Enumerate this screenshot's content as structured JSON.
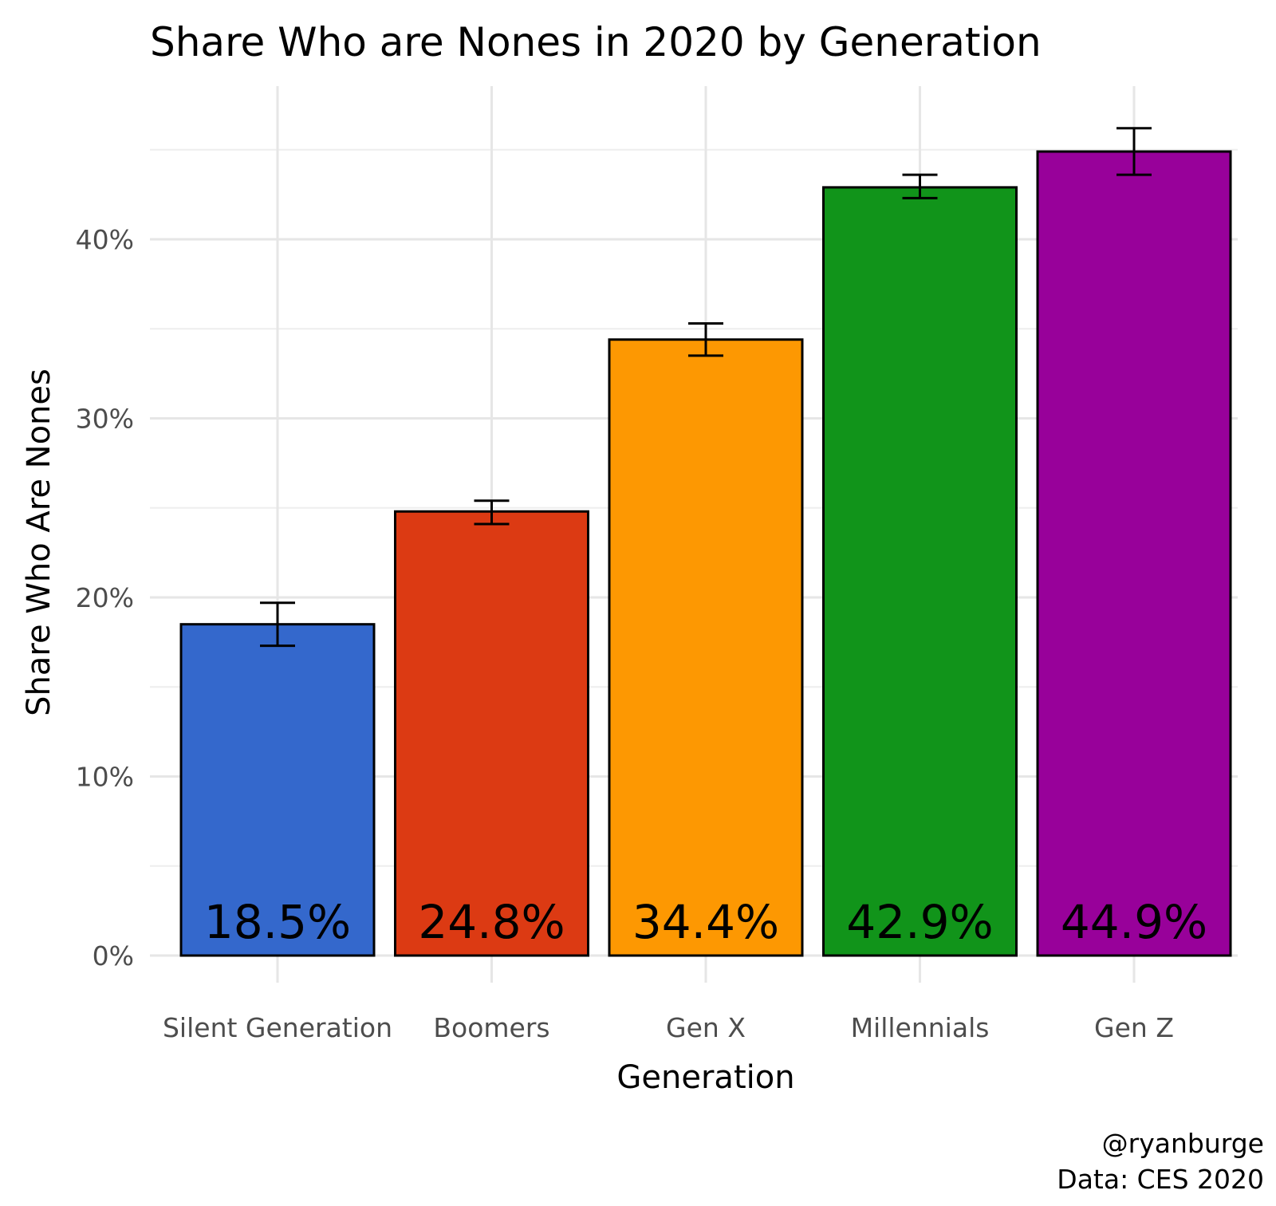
{
  "chart_data": {
    "type": "bar",
    "title": "Share Who are Nones in 2020 by Generation",
    "xlabel": "Generation",
    "ylabel": "Share Who Are Nones",
    "categories": [
      "Silent Generation",
      "Boomers",
      "Gen X",
      "Millennials",
      "Gen Z"
    ],
    "values": [
      18.5,
      24.8,
      34.4,
      42.9,
      44.9
    ],
    "value_labels": [
      "18.5%",
      "24.8%",
      "34.4%",
      "42.9%",
      "44.9%"
    ],
    "error_low": [
      17.3,
      24.1,
      33.5,
      42.3,
      43.6
    ],
    "error_high": [
      19.7,
      25.4,
      35.3,
      43.6,
      46.2
    ],
    "colors": [
      "#3468cc",
      "#dc3a13",
      "#fd9802",
      "#11941a",
      "#98019a"
    ],
    "ylim": [
      0,
      47
    ],
    "yticks": [
      0,
      10,
      20,
      30,
      40
    ],
    "ytick_labels": [
      "0%",
      "10%",
      "20%",
      "30%",
      "40%"
    ],
    "grid": true,
    "legend": "none"
  },
  "caption": {
    "handle": "@ryanburge",
    "source": "Data: CES 2020"
  }
}
